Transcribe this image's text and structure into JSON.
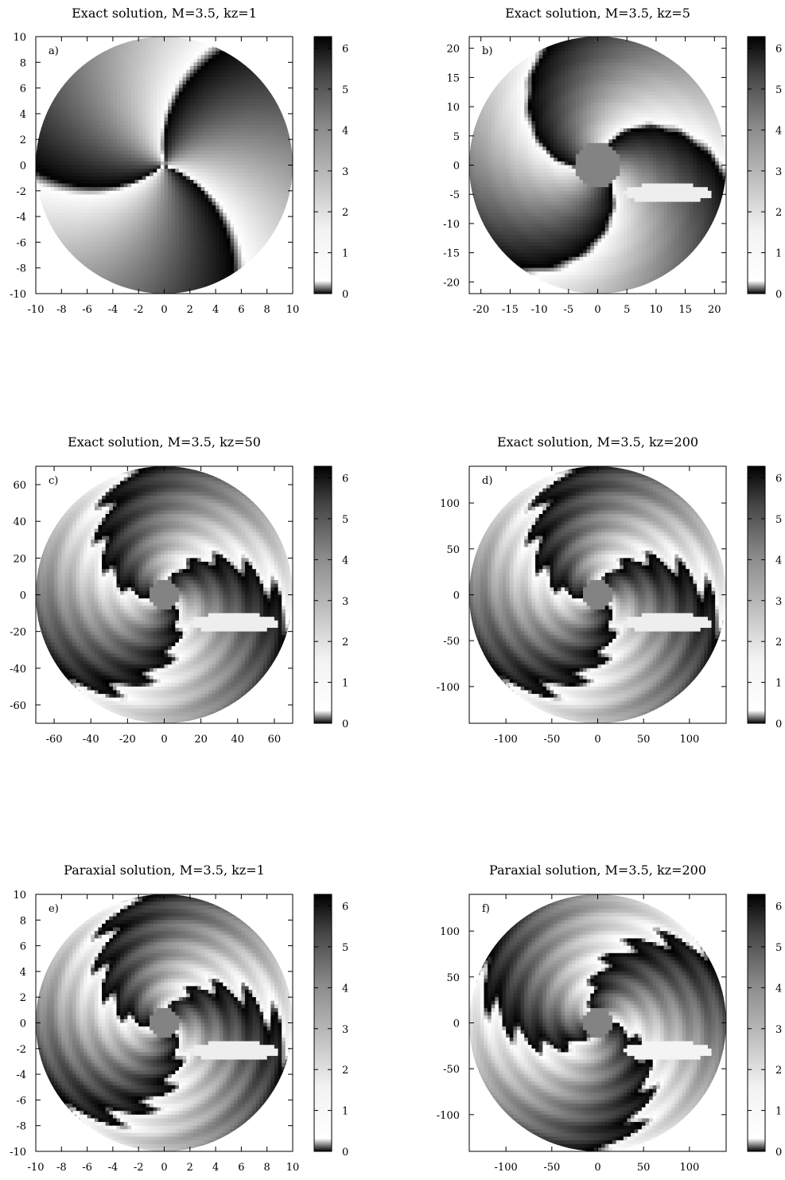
{
  "colorbar": {
    "min": 0,
    "max": 6.2832,
    "ticks": [
      "0",
      "1",
      "2",
      "3",
      "4",
      "5",
      "6"
    ]
  },
  "chart_data": [
    {
      "type": "heatmap",
      "panel": "a)",
      "title": "Exact solution, M=3.5, kz=1",
      "xlabel": "",
      "ylabel": "",
      "xlim": [
        -10,
        10
      ],
      "ylim": [
        -10,
        10
      ],
      "xticks": [
        "-10",
        "-8",
        "-6",
        "-4",
        "-2",
        "0",
        "2",
        "4",
        "6",
        "8",
        "10"
      ],
      "yticks": [
        "-10",
        "-8",
        "-6",
        "-4",
        "-2",
        "0",
        "2",
        "4",
        "6",
        "8",
        "10"
      ],
      "field": {
        "rotation_deg": 0,
        "winding": 0.9,
        "ripple": 0.0,
        "inner_hole": 0.0,
        "island": 0.0
      }
    },
    {
      "type": "heatmap",
      "panel": "b)",
      "title": "Exact solution, M=3.5, kz=5",
      "xlabel": "",
      "ylabel": "",
      "xlim": [
        -22,
        22
      ],
      "ylim": [
        -22,
        22
      ],
      "xticks": [
        "-20",
        "-15",
        "-10",
        "-5",
        "0",
        "5",
        "10",
        "15",
        "20"
      ],
      "yticks": [
        "-20",
        "-15",
        "-10",
        "-5",
        "0",
        "5",
        "10",
        "15",
        "20"
      ],
      "field": {
        "rotation_deg": 20,
        "winding": 2.2,
        "ripple": 0.05,
        "inner_hole": 0.18,
        "island": 1.0
      }
    },
    {
      "type": "heatmap",
      "panel": "c)",
      "title": "Exact solution, M=3.5, kz=50",
      "xlabel": "",
      "ylabel": "",
      "xlim": [
        -70,
        70
      ],
      "ylim": [
        -70,
        70
      ],
      "xticks": [
        "-60",
        "-40",
        "-20",
        "0",
        "20",
        "40",
        "60"
      ],
      "yticks": [
        "-60",
        "-40",
        "-20",
        "0",
        "20",
        "40",
        "60"
      ],
      "field": {
        "rotation_deg": 20,
        "winding": 2.4,
        "ripple": 0.35,
        "inner_hole": 0.12,
        "island": 1.0
      }
    },
    {
      "type": "heatmap",
      "panel": "d)",
      "title": "Exact solution, M=3.5, kz=200",
      "xlabel": "",
      "ylabel": "",
      "xlim": [
        -140,
        140
      ],
      "ylim": [
        -140,
        140
      ],
      "xticks": [
        "-100",
        "-50",
        "0",
        "50",
        "100"
      ],
      "yticks": [
        "-100",
        "-50",
        "0",
        "50",
        "100"
      ],
      "field": {
        "rotation_deg": 20,
        "winding": 2.4,
        "ripple": 0.4,
        "inner_hole": 0.12,
        "island": 1.0
      }
    },
    {
      "type": "heatmap",
      "panel": "e)",
      "title": "Paraxial solution, M=3.5, kz=1",
      "xlabel": "",
      "ylabel": "",
      "xlim": [
        -10,
        10
      ],
      "ylim": [
        -10,
        10
      ],
      "xticks": [
        "-10",
        "-8",
        "-6",
        "-4",
        "-2",
        "0",
        "2",
        "4",
        "6",
        "8",
        "10"
      ],
      "yticks": [
        "-10",
        "-8",
        "-6",
        "-4",
        "-2",
        "0",
        "2",
        "4",
        "6",
        "8",
        "10"
      ],
      "field": {
        "rotation_deg": 20,
        "winding": 2.4,
        "ripple": 0.45,
        "inner_hole": 0.12,
        "island": 1.0
      }
    },
    {
      "type": "heatmap",
      "panel": "f)",
      "title": "Paraxial solution, M=3.5, kz=200",
      "xlabel": "",
      "ylabel": "",
      "xlim": [
        -140,
        140
      ],
      "ylim": [
        -140,
        140
      ],
      "xticks": [
        "-100",
        "-50",
        "0",
        "50",
        "100"
      ],
      "yticks": [
        "-100",
        "-50",
        "0",
        "50",
        "100"
      ],
      "field": {
        "rotation_deg": -25,
        "winding": 2.3,
        "ripple": 0.4,
        "inner_hole": 0.12,
        "island": 0.8
      }
    }
  ]
}
